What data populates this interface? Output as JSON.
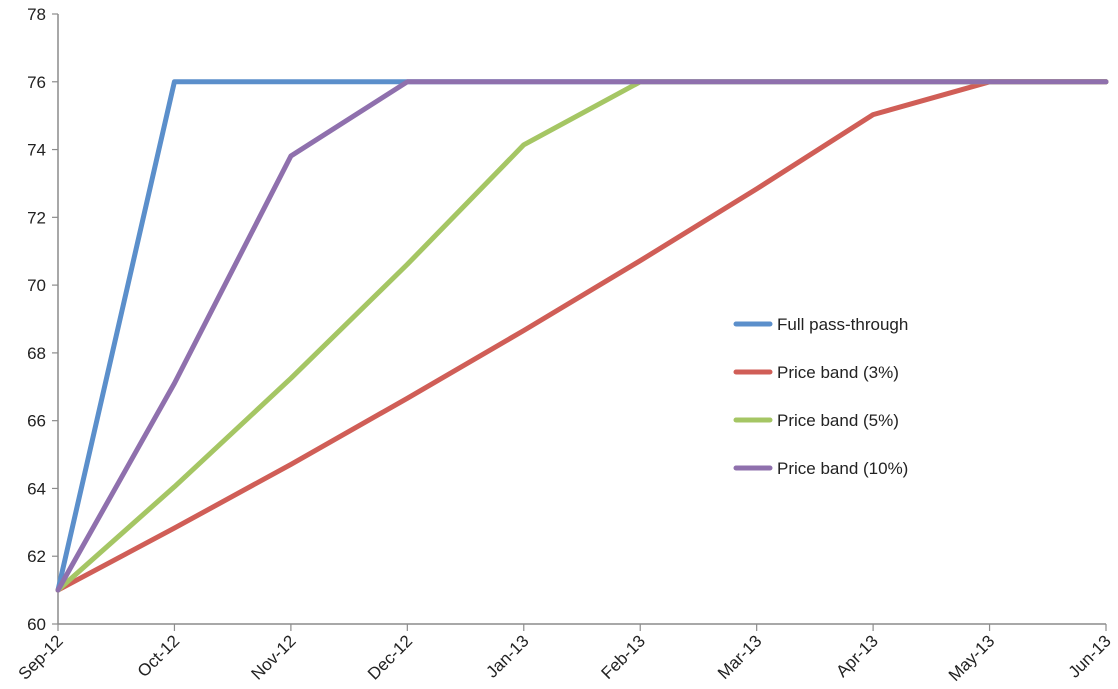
{
  "chart_data": {
    "type": "line",
    "title": "",
    "xlabel": "",
    "ylabel": "",
    "categories": [
      "Sep-12",
      "Oct-12",
      "Nov-12",
      "Dec-12",
      "Jan-13",
      "Feb-13",
      "Mar-13",
      "Apr-13",
      "May-13",
      "Jun-13"
    ],
    "ylim": [
      60,
      78
    ],
    "yticks": [
      60,
      62,
      64,
      66,
      68,
      70,
      72,
      74,
      76,
      78
    ],
    "grid": false,
    "legend_position": "center-right",
    "series": [
      {
        "name": "Full pass-through",
        "color": "#5b8fcb",
        "values": [
          61.0,
          76.0,
          76.0,
          76.0,
          76.0,
          76.0,
          76.0,
          76.0,
          76.0,
          76.0
        ]
      },
      {
        "name": "Price band (3%)",
        "color": "#d05e57",
        "values": [
          61.0,
          62.83,
          64.71,
          66.66,
          68.66,
          70.72,
          72.84,
          75.03,
          76.0,
          76.0
        ]
      },
      {
        "name": "Price band (5%)",
        "color": "#a5c664",
        "values": [
          61.0,
          64.05,
          67.25,
          70.61,
          74.14,
          76.0,
          76.0,
          76.0,
          76.0,
          76.0
        ]
      },
      {
        "name": "Price band (10%)",
        "color": "#8f70ad",
        "values": [
          61.0,
          67.1,
          73.81,
          76.0,
          76.0,
          76.0,
          76.0,
          76.0,
          76.0,
          76.0
        ]
      }
    ]
  }
}
